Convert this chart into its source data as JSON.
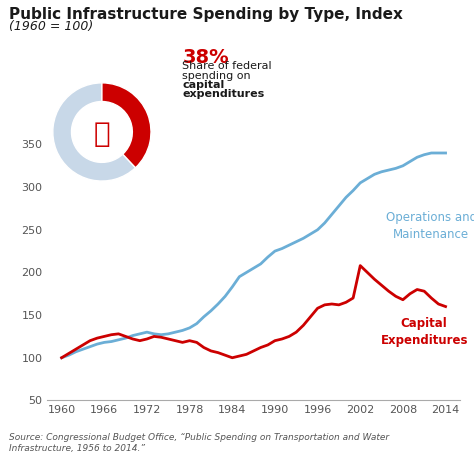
{
  "title": "Public Infrastructure Spending by Type, Index",
  "subtitle": "(1960 = 100)",
  "source": "Source: Congressional Budget Office, “Public Spending on Transportation and Water\nInfrastructure, 1956 to 2014.”",
  "title_color": "#1a1a1a",
  "subtitle_color": "#1a1a1a",
  "background_color": "#ffffff",
  "x_years": [
    1960,
    1961,
    1962,
    1963,
    1964,
    1965,
    1966,
    1967,
    1968,
    1969,
    1970,
    1971,
    1972,
    1973,
    1974,
    1975,
    1976,
    1977,
    1978,
    1979,
    1980,
    1981,
    1982,
    1983,
    1984,
    1985,
    1986,
    1987,
    1988,
    1989,
    1990,
    1991,
    1992,
    1993,
    1994,
    1995,
    1996,
    1997,
    1998,
    1999,
    2000,
    2001,
    2002,
    2003,
    2004,
    2005,
    2006,
    2007,
    2008,
    2009,
    2010,
    2011,
    2012,
    2013,
    2014
  ],
  "om_values": [
    100,
    103,
    107,
    110,
    113,
    116,
    118,
    119,
    121,
    123,
    126,
    128,
    130,
    128,
    127,
    128,
    130,
    132,
    135,
    140,
    148,
    155,
    163,
    172,
    183,
    195,
    200,
    205,
    210,
    218,
    225,
    228,
    232,
    236,
    240,
    245,
    250,
    258,
    268,
    278,
    288,
    296,
    305,
    310,
    315,
    318,
    320,
    322,
    325,
    330,
    335,
    338,
    340,
    340,
    340
  ],
  "capex_values": [
    100,
    105,
    110,
    115,
    120,
    123,
    125,
    127,
    128,
    125,
    122,
    120,
    122,
    125,
    124,
    122,
    120,
    118,
    120,
    118,
    112,
    108,
    106,
    103,
    100,
    102,
    104,
    108,
    112,
    115,
    120,
    122,
    125,
    130,
    138,
    148,
    158,
    162,
    163,
    162,
    165,
    170,
    208,
    200,
    192,
    185,
    178,
    172,
    168,
    175,
    180,
    178,
    170,
    163,
    160
  ],
  "om_color": "#6baed6",
  "capex_color": "#cc0000",
  "donut_red_pct": 38,
  "donut_red_color": "#cc0000",
  "donut_gray_color": "#c8d8e8",
  "donut_label_pct": "38%",
  "donut_label_color": "#cc0000",
  "donut_text1": "Share of federal",
  "donut_text2": "spending on ",
  "donut_text3": "capital",
  "donut_text4": "expenditures",
  "om_label": "Operations and\nMaintenance",
  "capex_label": "Capital\nExpenditures",
  "ylim": [
    50,
    370
  ],
  "yticks": [
    50,
    100,
    150,
    200,
    250,
    300,
    350
  ],
  "xticks": [
    1960,
    1966,
    1972,
    1978,
    1984,
    1990,
    1996,
    2002,
    2008,
    2014
  ],
  "tick_label_color": "#555555",
  "line_width": 2.0
}
